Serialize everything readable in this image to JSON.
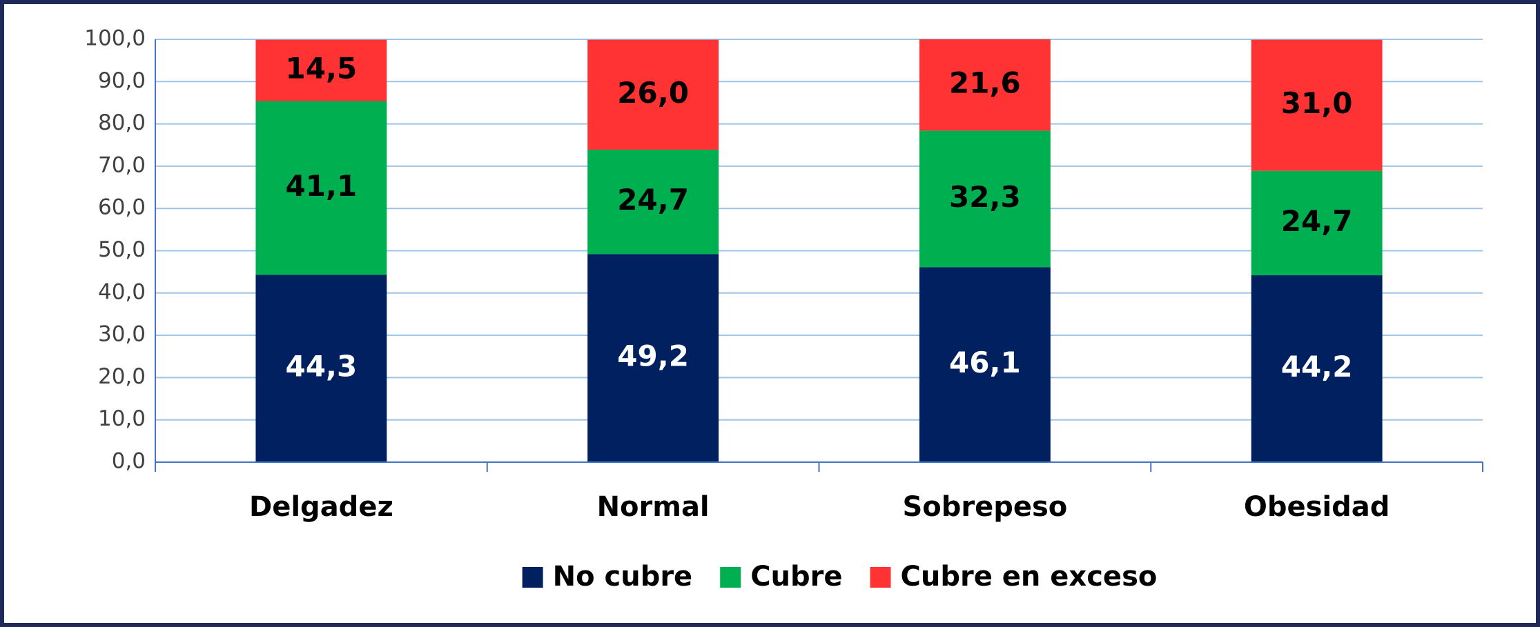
{
  "chart_data": {
    "type": "stacked_bar",
    "categories": [
      "Delgadez",
      "Normal",
      "Sobrepeso",
      "Obesidad"
    ],
    "series": [
      {
        "name": "No cubre",
        "color": "#002060",
        "label_color": "#ffffff",
        "values": [
          44.3,
          49.2,
          46.1,
          44.2
        ],
        "value_labels": [
          "44,3",
          "49,2",
          "46,1",
          "44,2"
        ]
      },
      {
        "name": "Cubre",
        "color": "#00b050",
        "label_color": "#000000",
        "values": [
          41.1,
          24.7,
          32.3,
          24.7
        ],
        "value_labels": [
          "41,1",
          "24,7",
          "32,3",
          "24,7"
        ]
      },
      {
        "name": "Cubre en exceso",
        "color": "#ff3333",
        "label_color": "#000000",
        "values": [
          14.5,
          26.0,
          21.6,
          31.0
        ],
        "value_labels": [
          "14,5",
          "26,0",
          "21,6",
          "31,0"
        ]
      }
    ],
    "ylim": [
      0,
      100
    ],
    "yticks": [
      {
        "value": 0,
        "label": "0,0"
      },
      {
        "value": 10,
        "label": "10,0"
      },
      {
        "value": 20,
        "label": "20,0"
      },
      {
        "value": 30,
        "label": "30,0"
      },
      {
        "value": 40,
        "label": "40,0"
      },
      {
        "value": 50,
        "label": "50,0"
      },
      {
        "value": 60,
        "label": "60,0"
      },
      {
        "value": 70,
        "label": "70,0"
      },
      {
        "value": 80,
        "label": "80,0"
      },
      {
        "value": 90,
        "label": "90,0"
      },
      {
        "value": 100,
        "label": "100,0"
      }
    ],
    "grid": true,
    "legend": "bottom"
  }
}
